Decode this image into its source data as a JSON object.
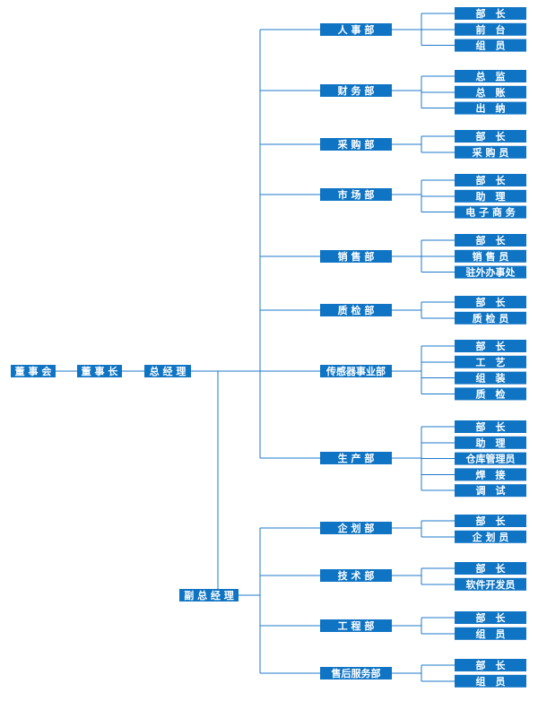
{
  "root": [
    "董 事 会",
    "董 事 长",
    "总 经 理"
  ],
  "vice_manager": "副 总 经 理",
  "gm_departments": [
    {
      "name": "人 事 部",
      "members": [
        "部　长",
        "前　台",
        "组　员"
      ]
    },
    {
      "name": "财 务 部",
      "members": [
        "总　监",
        "总　账",
        "出　纳"
      ]
    },
    {
      "name": "采 购 部",
      "members": [
        "部　长",
        "采 购 员"
      ]
    },
    {
      "name": "市 场 部",
      "members": [
        "部　长",
        "助　理",
        "电 子 商 务"
      ]
    },
    {
      "name": "销 售 部",
      "members": [
        "部　长",
        "销 售 员",
        "驻外办事处"
      ]
    },
    {
      "name": "质 检 部",
      "members": [
        "部　长",
        "质 检 员"
      ]
    },
    {
      "name": "传感器事业部",
      "members": [
        "部　长",
        "工　艺",
        "组　装",
        "质　检"
      ]
    },
    {
      "name": "生 产 部",
      "members": [
        "部　长",
        "助　理",
        "仓库管理员",
        "焊　接",
        "调　试"
      ]
    }
  ],
  "vice_departments": [
    {
      "name": "企 划 部",
      "members": [
        "部　长",
        "企 划 员"
      ]
    },
    {
      "name": "技 术 部",
      "members": [
        "部　长",
        "软件开发员"
      ]
    },
    {
      "name": "工 程 部",
      "members": [
        "部　长",
        "组　员"
      ]
    },
    {
      "name": "售后服务部",
      "members": [
        "部　长",
        "组　员"
      ]
    }
  ],
  "colors": {
    "node": "#0f74c4",
    "line": "#1e78c8",
    "text": "#ffffff"
  }
}
